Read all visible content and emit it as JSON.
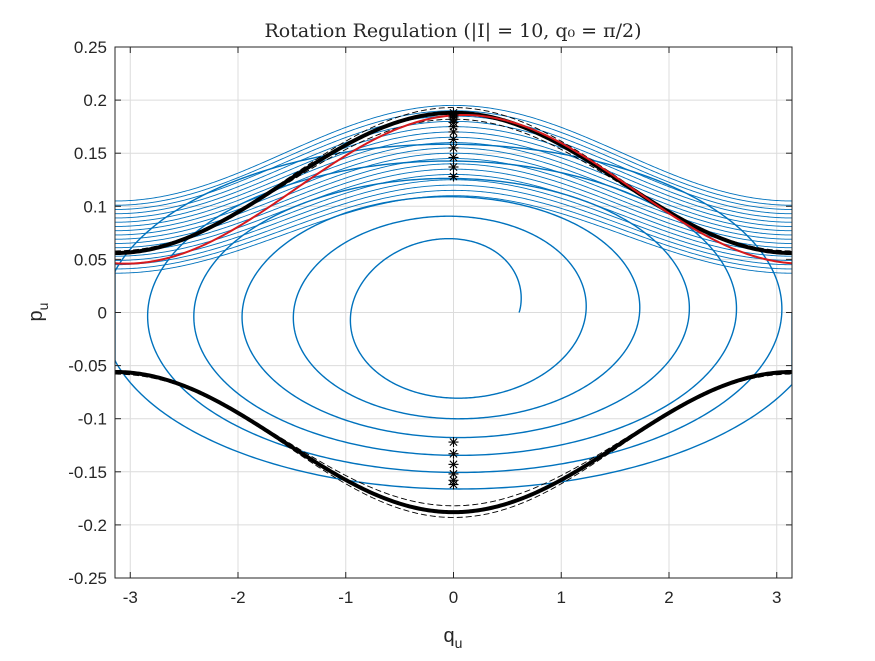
{
  "chart_data": {
    "type": "line",
    "title": "Rotation Regulation (|I| = 10, q₀ = π/2)",
    "xlabel": "q",
    "xlabel_sub": "u",
    "ylabel": "p",
    "ylabel_sub": "u",
    "xlim": [
      -3.1416,
      3.1416
    ],
    "ylim": [
      -0.25,
      0.25
    ],
    "xticks": [
      -3,
      -2,
      -1,
      0,
      1,
      2,
      3
    ],
    "xtick_labels": [
      "-3",
      "-2",
      "-1",
      "0",
      "1",
      "2",
      "3"
    ],
    "yticks": [
      -0.25,
      -0.2,
      -0.15,
      -0.1,
      -0.05,
      0,
      0.05,
      0.1,
      0.15,
      0.2,
      0.25
    ],
    "ytick_labels": [
      "-0.25",
      "-0.2",
      "-0.15",
      "-0.1",
      "-0.05",
      "0",
      "0.05",
      "0.1",
      "0.15",
      "0.2",
      "0.25"
    ],
    "grid": true,
    "series": [
      {
        "name": "upper separatrix",
        "color": "#000000",
        "style": "solid-thick",
        "center": 0.122,
        "amplitude": 0.066
      },
      {
        "name": "upper bound outer",
        "color": "#000000",
        "style": "dashed",
        "center": 0.124,
        "amplitude": 0.069
      },
      {
        "name": "upper bound inner",
        "color": "#000000",
        "style": "dashed",
        "center": 0.12,
        "amplitude": 0.062
      },
      {
        "name": "lower separatrix",
        "color": "#000000",
        "style": "solid-thick",
        "center": -0.122,
        "amplitude": 0.066
      },
      {
        "name": "lower bound outer",
        "color": "#000000",
        "style": "dashed",
        "center": -0.124,
        "amplitude": 0.069
      },
      {
        "name": "lower bound inner",
        "color": "#000000",
        "style": "dashed",
        "center": -0.12,
        "amplitude": 0.062
      },
      {
        "name": "reference trajectory",
        "color": "#d7191c",
        "style": "solid",
        "center": 0.116,
        "amplitude": 0.07,
        "phase": 0.1
      },
      {
        "name": "regulated trajectory",
        "color": "#0072bd",
        "style": "solid-thin",
        "start": [
          1.5708,
          0.0
        ],
        "end": [
          0.0,
          0.19
        ],
        "spiral_points": 3200
      }
    ],
    "markers": {
      "symbol": "asterisk",
      "color": "#000000",
      "x": 0,
      "y": [
        0.128,
        0.137,
        0.146,
        0.155,
        0.163,
        0.17,
        0.175,
        0.179,
        0.182,
        0.184,
        0.186,
        0.188,
        -0.122,
        -0.133,
        -0.143,
        -0.152,
        -0.158,
        -0.162
      ]
    }
  }
}
